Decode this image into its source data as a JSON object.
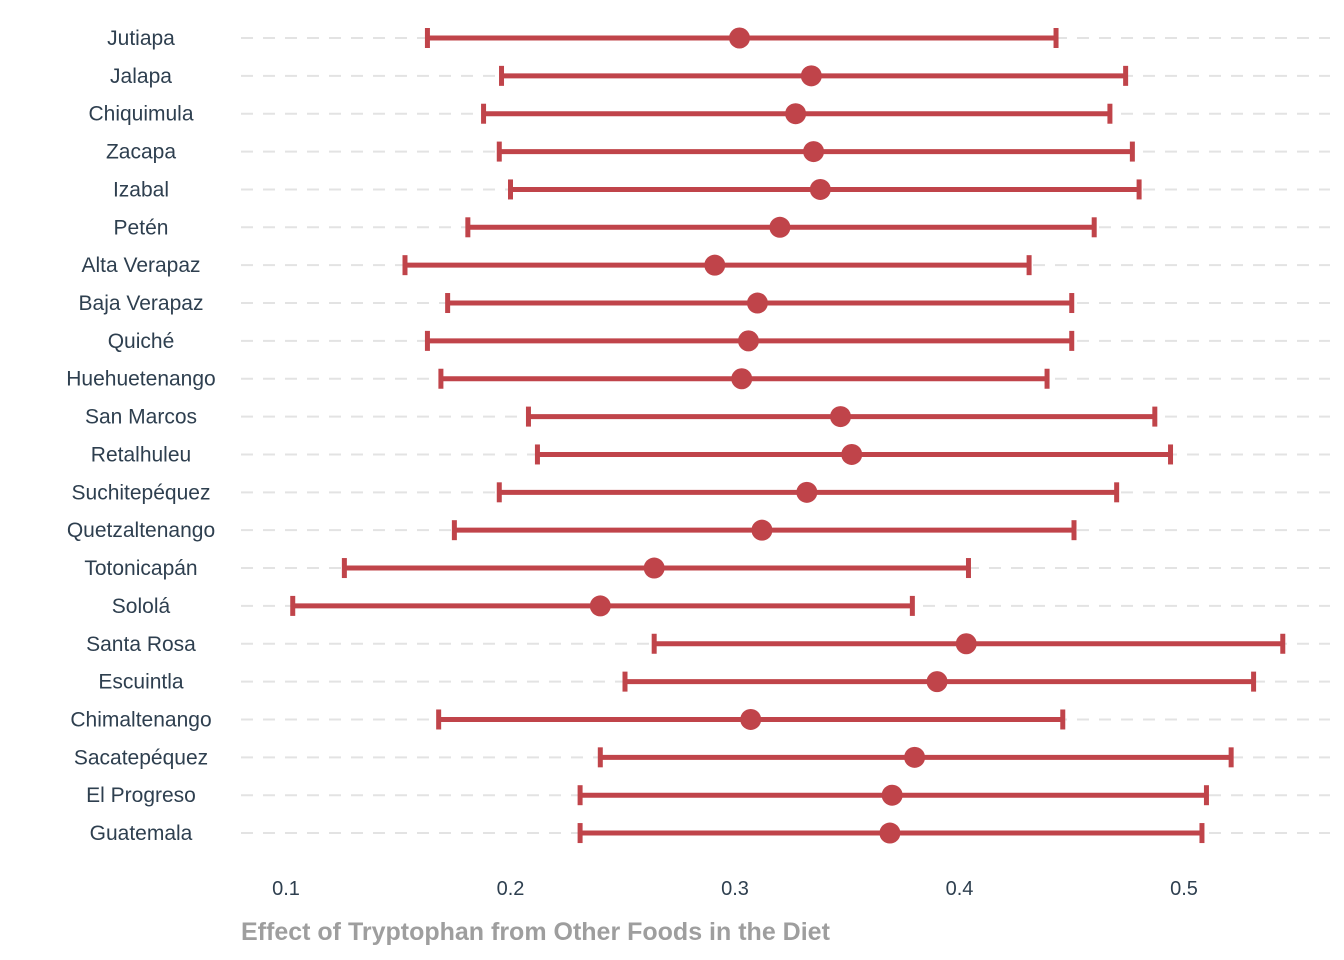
{
  "chart_data": {
    "type": "errorbar",
    "xlabel": "Effect of Tryptophan from Other Foods in the Diet",
    "ylabel": "",
    "xlim": [
      0.08,
      0.545
    ],
    "x_ticks": [
      0.1,
      0.2,
      0.3,
      0.4,
      0.5
    ],
    "x_tick_labels": [
      "0.1",
      "0.2",
      "0.3",
      "0.4",
      "0.5"
    ],
    "grid": "horizontal dashed",
    "color": "#c0444a",
    "rows": [
      {
        "label": "Jutiapa",
        "estimate": 0.302,
        "lower": 0.163,
        "upper": 0.443
      },
      {
        "label": "Jalapa",
        "estimate": 0.334,
        "lower": 0.196,
        "upper": 0.474
      },
      {
        "label": "Chiquimula",
        "estimate": 0.327,
        "lower": 0.188,
        "upper": 0.467
      },
      {
        "label": "Zacapa",
        "estimate": 0.335,
        "lower": 0.195,
        "upper": 0.477
      },
      {
        "label": "Izabal",
        "estimate": 0.338,
        "lower": 0.2,
        "upper": 0.48
      },
      {
        "label": "Petén",
        "estimate": 0.32,
        "lower": 0.181,
        "upper": 0.46
      },
      {
        "label": "Alta Verapaz",
        "estimate": 0.291,
        "lower": 0.153,
        "upper": 0.431
      },
      {
        "label": "Baja Verapaz",
        "estimate": 0.31,
        "lower": 0.172,
        "upper": 0.45
      },
      {
        "label": "Quiché",
        "estimate": 0.306,
        "lower": 0.163,
        "upper": 0.45
      },
      {
        "label": "Huehuetenango",
        "estimate": 0.303,
        "lower": 0.169,
        "upper": 0.439
      },
      {
        "label": "San Marcos",
        "estimate": 0.347,
        "lower": 0.208,
        "upper": 0.487
      },
      {
        "label": "Retalhuleu",
        "estimate": 0.352,
        "lower": 0.212,
        "upper": 0.494
      },
      {
        "label": "Suchitepéquez",
        "estimate": 0.332,
        "lower": 0.195,
        "upper": 0.47
      },
      {
        "label": "Quetzaltenango",
        "estimate": 0.312,
        "lower": 0.175,
        "upper": 0.451
      },
      {
        "label": "Totonicapán",
        "estimate": 0.264,
        "lower": 0.126,
        "upper": 0.404
      },
      {
        "label": "Sololá",
        "estimate": 0.24,
        "lower": 0.103,
        "upper": 0.379
      },
      {
        "label": "Santa Rosa",
        "estimate": 0.403,
        "lower": 0.264,
        "upper": 0.544
      },
      {
        "label": "Escuintla",
        "estimate": 0.39,
        "lower": 0.251,
        "upper": 0.531
      },
      {
        "label": "Chimaltenango",
        "estimate": 0.307,
        "lower": 0.168,
        "upper": 0.446
      },
      {
        "label": "Sacatepéquez",
        "estimate": 0.38,
        "lower": 0.24,
        "upper": 0.521
      },
      {
        "label": "El Progreso",
        "estimate": 0.37,
        "lower": 0.231,
        "upper": 0.51
      },
      {
        "label": "Guatemala",
        "estimate": 0.369,
        "lower": 0.231,
        "upper": 0.508
      }
    ]
  }
}
